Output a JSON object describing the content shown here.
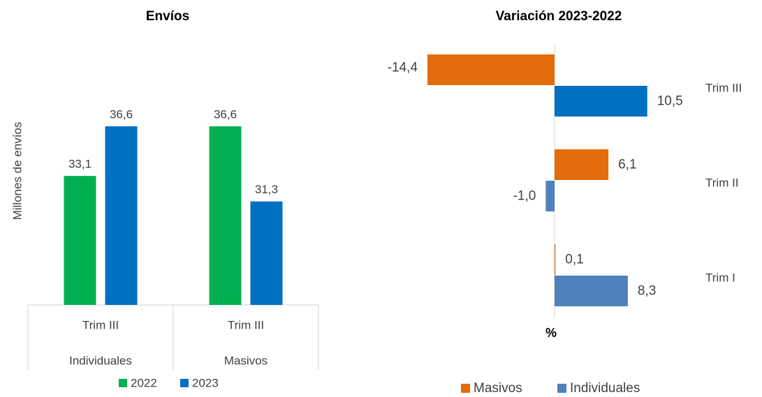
{
  "chart_data": [
    {
      "type": "bar",
      "title": "Envíos",
      "y_label": "Millones de envíos",
      "categories": [
        "Trim III",
        "Trim III"
      ],
      "groups": [
        "Individuales",
        "Masivos"
      ],
      "series": [
        {
          "name": "2022",
          "color": "#00b050",
          "values": [
            33.1,
            36.6
          ],
          "value_labels": [
            "33,1",
            "36,6"
          ]
        },
        {
          "name": "2023",
          "color": "#0070c0",
          "values": [
            36.6,
            31.3
          ],
          "value_labels": [
            "36,6",
            "31,3"
          ]
        }
      ],
      "ylim": [
        24,
        40
      ],
      "grid": false,
      "legend": "bottom"
    },
    {
      "type": "hbar",
      "title": "Variación 2023-2022",
      "x_label": "%",
      "categories": [
        "Trim III",
        "Trim II",
        "Trim I"
      ],
      "series": [
        {
          "name": "Masivos",
          "color": "#e36c0a",
          "values": [
            -14.4,
            6.1,
            0.1
          ],
          "value_labels": [
            "-14,4",
            "6,1",
            "0,1"
          ]
        },
        {
          "name": "Individuales",
          "color": "#4f81bd",
          "colors": [
            "#0070c0",
            "#4f81bd",
            "#4f81bd"
          ],
          "values": [
            10.5,
            -1.0,
            8.3
          ],
          "value_labels": [
            "10,5",
            "-1,0",
            "8,3"
          ]
        }
      ],
      "xlim": [
        -15,
        20
      ],
      "grid": false,
      "legend": "bottom"
    }
  ]
}
